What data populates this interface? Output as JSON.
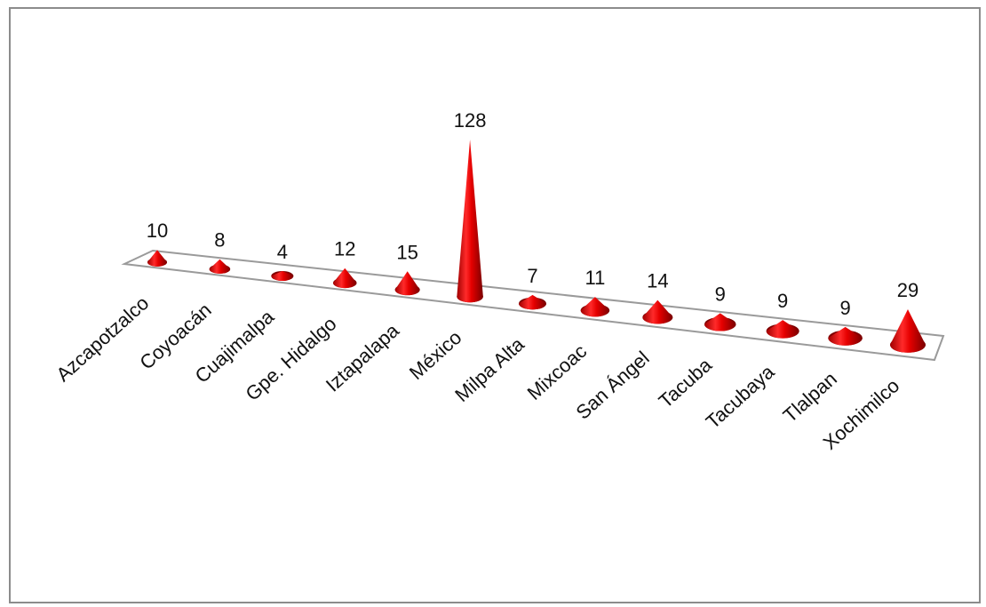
{
  "chart_data": {
    "type": "bar",
    "style": "3d-cone",
    "title": "",
    "xlabel": "",
    "ylabel": "",
    "categories": [
      "Azcapotzalco",
      "Coyoacán",
      "Cuajimalpa",
      "Gpe. Hidalgo",
      "Iztapalapa",
      "México",
      "Milpa Alta",
      "Mixcoac",
      "San Ángel",
      "Tacuba",
      "Tacubaya",
      "Tlalpan",
      "Xochimilco"
    ],
    "values": [
      10,
      8,
      4,
      12,
      15,
      128,
      7,
      11,
      14,
      9,
      9,
      9,
      29
    ],
    "value_labels": [
      "10",
      "8",
      "4",
      "12",
      "15",
      "128",
      "7",
      "11",
      "14",
      "9",
      "9",
      "9",
      "29"
    ],
    "bar_color": "#e60000",
    "grid": false,
    "legend": "none",
    "data_labels": true
  }
}
